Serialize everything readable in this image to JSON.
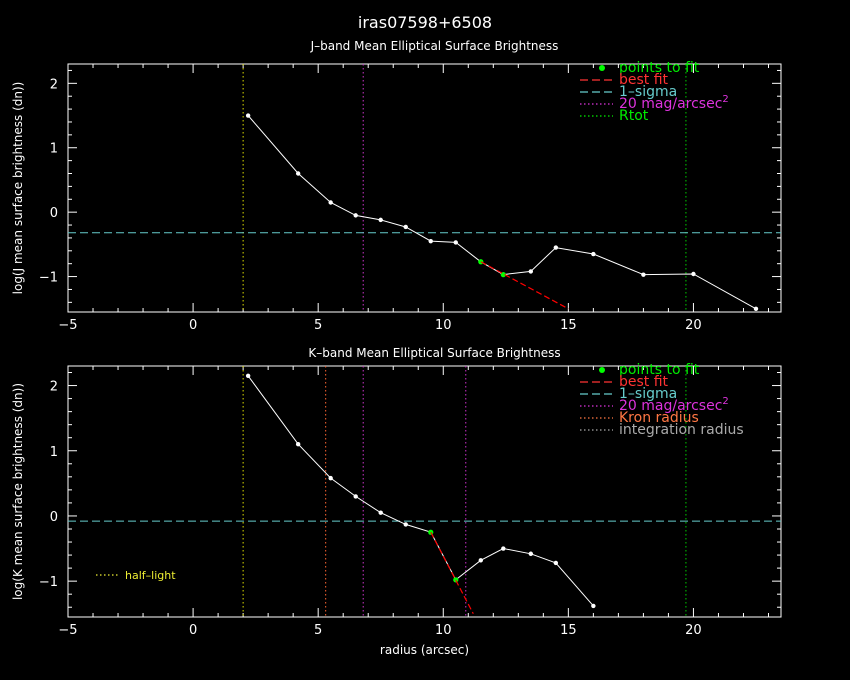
{
  "figure": {
    "title": "iras07598+6508",
    "colors": {
      "background": "#000000",
      "axes": "#ffffff",
      "data_line": "#ffffff",
      "points_to_fit": "#00ff00",
      "best_fit": "#ff0000",
      "one_sigma": "#66cccc",
      "mag20": "#cc33cc",
      "rtot": "#00cc00",
      "kron": "#ff6633",
      "integration": "#888888",
      "half_light": "#dddd00",
      "legend_green": "#00ee00",
      "legend_red": "#ff3333",
      "legend_cyan": "#66cccc",
      "legend_magenta": "#dd33dd",
      "legend_orange": "#ff7744",
      "legend_gray": "#aaaaaa",
      "legend_yellow": "#eeee33"
    }
  },
  "chart_data": [
    {
      "type": "line",
      "title": "J–band Mean Elliptical Surface Brightness",
      "xlabel": "",
      "ylabel": "log(J mean surface brightness (dn))",
      "xlim": [
        -5,
        23.5
      ],
      "ylim": [
        -1.55,
        2.3
      ],
      "xticks": [
        -5,
        0,
        5,
        10,
        15,
        20
      ],
      "xtick_labels": [
        "−5",
        "0",
        "5",
        "10",
        "15",
        "20"
      ],
      "yticks": [
        -1,
        0,
        1,
        2
      ],
      "ytick_labels": [
        "−1",
        "0",
        "1",
        "2"
      ],
      "grid": false,
      "legend_position": "top-right",
      "legend": [
        {
          "label": "points to fit",
          "style": "dot",
          "color_key": "legend_green",
          "sup": ""
        },
        {
          "label": "best fit",
          "style": "dashed",
          "color_key": "legend_red",
          "sup": ""
        },
        {
          "label": "1–sigma",
          "style": "dashed",
          "color_key": "legend_cyan",
          "sup": ""
        },
        {
          "label": "20 mag/arcsec",
          "style": "dotted",
          "color_key": "legend_magenta",
          "sup": "2"
        },
        {
          "label": "Rtot",
          "style": "dotted",
          "color_key": "legend_green",
          "sup": ""
        }
      ],
      "series": [
        {
          "name": "",
          "x": [
            2.2,
            4.2,
            5.5,
            6.5,
            7.5,
            8.5,
            9.5,
            10.5,
            11.5,
            12.4,
            13.5,
            14.5,
            16.0,
            18.0,
            20.0,
            22.5
          ],
          "y": [
            1.5,
            0.6,
            0.15,
            -0.05,
            -0.12,
            -0.23,
            -0.45,
            -0.47,
            -0.77,
            -0.97,
            -0.92,
            -0.55,
            -0.65,
            -0.97,
            -0.96,
            -1.5
          ],
          "fit_x": [
            11.5,
            12.4
          ]
        }
      ],
      "best_fit": {
        "x": [
          11.5,
          15.0
        ],
        "y": [
          -0.77,
          -1.5
        ]
      },
      "sigma_y": -0.32,
      "vlines": [
        {
          "name": "half-light",
          "x": 2.0,
          "color_key": "half_light"
        },
        {
          "name": "20-mag",
          "x": 6.8,
          "color_key": "mag20"
        },
        {
          "name": "rtot",
          "x": 19.7,
          "color_key": "rtot"
        }
      ]
    },
    {
      "type": "line",
      "title": "K–band Mean Elliptical Surface Brightness",
      "xlabel": "radius (arcsec)",
      "ylabel": "log(K mean surface brightness (dn))",
      "xlim": [
        -5,
        23.5
      ],
      "ylim": [
        -1.55,
        2.3
      ],
      "xticks": [
        -5,
        0,
        5,
        10,
        15,
        20
      ],
      "xtick_labels": [
        "−5",
        "0",
        "5",
        "10",
        "15",
        "20"
      ],
      "yticks": [
        -1,
        0,
        1,
        2
      ],
      "ytick_labels": [
        "−1",
        "0",
        "1",
        "2"
      ],
      "grid": false,
      "legend_position": "top-right",
      "legend": [
        {
          "label": "points to fit",
          "style": "dot",
          "color_key": "legend_green",
          "sup": ""
        },
        {
          "label": "best fit",
          "style": "dashed",
          "color_key": "legend_red",
          "sup": ""
        },
        {
          "label": "1–sigma",
          "style": "dashed",
          "color_key": "legend_cyan",
          "sup": ""
        },
        {
          "label": "20 mag/arcsec",
          "style": "dotted",
          "color_key": "legend_magenta",
          "sup": "2"
        },
        {
          "label": "Kron radius",
          "style": "dotted",
          "color_key": "legend_orange",
          "sup": ""
        },
        {
          "label": "integration radius",
          "style": "dotted",
          "color_key": "legend_gray",
          "sup": ""
        }
      ],
      "annotation": {
        "label": "half–light",
        "color_key": "legend_yellow",
        "position": "bottom-left"
      },
      "series": [
        {
          "name": "",
          "x": [
            2.2,
            4.2,
            5.5,
            6.5,
            7.5,
            8.5,
            9.5,
            10.5,
            11.5,
            12.4,
            13.5,
            14.5,
            16.0
          ],
          "y": [
            2.15,
            1.1,
            0.58,
            0.3,
            0.05,
            -0.13,
            -0.25,
            -0.98,
            -0.68,
            -0.5,
            -0.58,
            -0.72,
            -1.38
          ],
          "fit_x": [
            9.5,
            10.5
          ]
        }
      ],
      "best_fit": {
        "x": [
          9.5,
          11.2
        ],
        "y": [
          -0.25,
          -1.5
        ]
      },
      "sigma_y": -0.08,
      "vlines": [
        {
          "name": "half-light",
          "x": 2.0,
          "color_key": "half_light"
        },
        {
          "name": "kron",
          "x": 5.3,
          "color_key": "kron"
        },
        {
          "name": "20-mag",
          "x": 6.8,
          "color_key": "mag20"
        },
        {
          "name": "integration",
          "x": 10.9,
          "color_key": "mag20"
        },
        {
          "name": "rtot",
          "x": 19.7,
          "color_key": "rtot"
        }
      ]
    }
  ]
}
